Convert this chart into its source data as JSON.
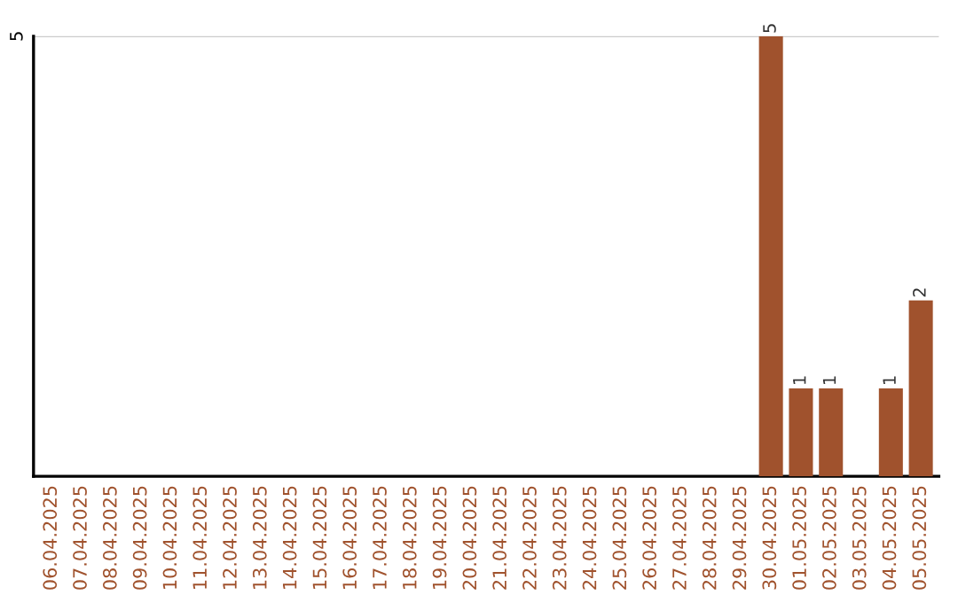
{
  "chart_data": {
    "type": "bar",
    "ylim": [
      0,
      5
    ],
    "categories": [
      "06.04.2025",
      "07.04.2025",
      "08.04.2025",
      "09.04.2025",
      "10.04.2025",
      "11.04.2025",
      "12.04.2025",
      "13.04.2025",
      "14.04.2025",
      "15.04.2025",
      "16.04.2025",
      "17.04.2025",
      "18.04.2025",
      "19.04.2025",
      "20.04.2025",
      "21.04.2025",
      "22.04.2025",
      "23.04.2025",
      "24.04.2025",
      "25.04.2025",
      "26.04.2025",
      "27.04.2025",
      "28.04.2025",
      "29.04.2025",
      "30.04.2025",
      "01.05.2025",
      "02.05.2025",
      "03.05.2025",
      "04.05.2025",
      "05.05.2025"
    ],
    "values": [
      null,
      null,
      null,
      null,
      null,
      null,
      null,
      null,
      null,
      null,
      null,
      null,
      null,
      null,
      null,
      null,
      null,
      null,
      null,
      null,
      null,
      null,
      null,
      null,
      5,
      1,
      1,
      null,
      1,
      2
    ],
    "data_labels": true,
    "color": "#a0522d",
    "ref_lines": [
      {
        "axis": "y",
        "value": 5,
        "label": "5",
        "color": "#cccccc"
      }
    ]
  }
}
